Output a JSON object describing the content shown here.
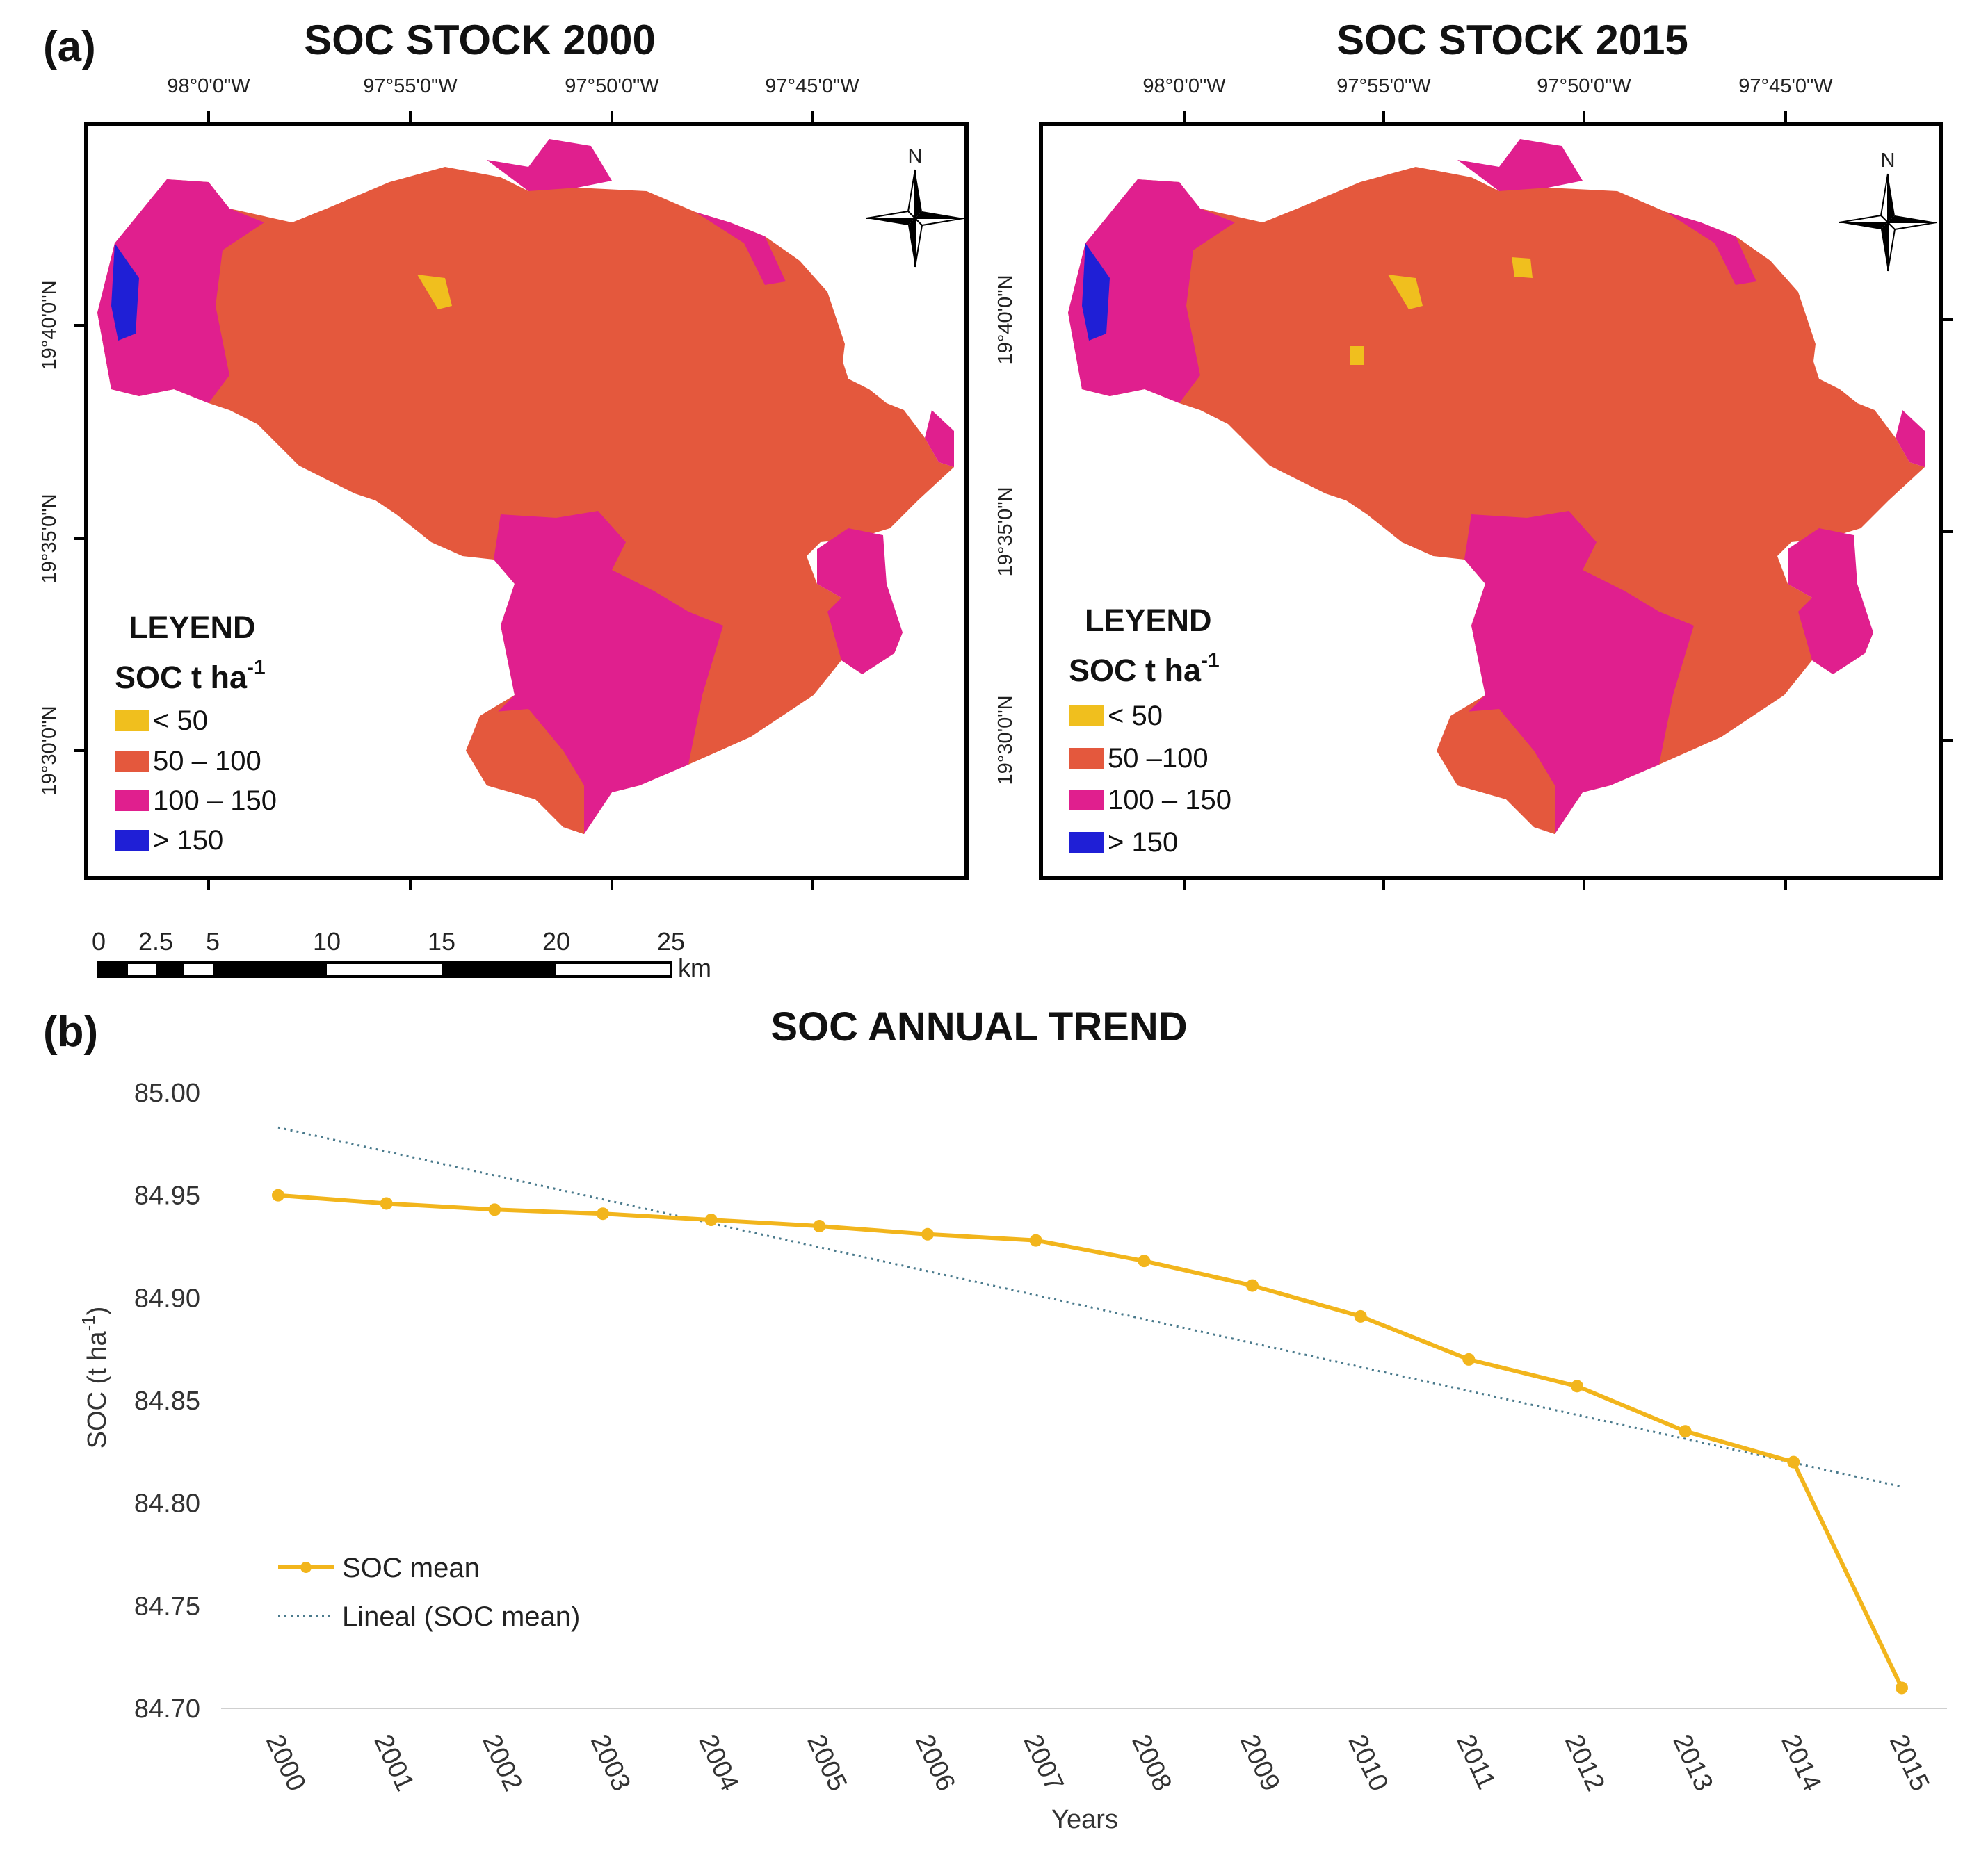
{
  "panel_a_label": "(a)",
  "panel_b_label": "(b)",
  "colors": {
    "class_lt50": "#f0bf1e",
    "class_50_100": "#e4583d",
    "class_100_150": "#e01f8e",
    "class_gt150": "#1f1fd6",
    "soc_line": "#f2b51c",
    "trend_line": "#4a7a8c"
  },
  "maps": [
    {
      "title": "SOC STOCK 2000",
      "lon_labels": [
        "98°0'0\"W",
        "97°55'0\"W",
        "97°50'0\"W",
        "97°45'0\"W"
      ],
      "lat_labels": [
        "19°40'0\"N",
        "19°35'0\"N",
        "19°30'0\"N"
      ],
      "north_label": "N",
      "legend": {
        "title": "LEYEND",
        "subtitle": "SOC t ha",
        "subtitle_sup": "-1",
        "items": [
          {
            "label": "< 50",
            "color_key": "class_lt50"
          },
          {
            "label": "50 – 100",
            "color_key": "class_50_100"
          },
          {
            "label": "100 – 150",
            "color_key": "class_100_150"
          },
          {
            "label": "> 150",
            "color_key": "class_gt150"
          }
        ]
      }
    },
    {
      "title": "SOC STOCK 2015",
      "lon_labels": [
        "98°0'0\"W",
        "97°55'0\"W",
        "97°50'0\"W",
        "97°45'0\"W"
      ],
      "lat_labels": [
        "19°40'0\"N",
        "19°35'0\"N",
        "19°30'0\"N"
      ],
      "north_label": "N",
      "legend": {
        "title": "LEYEND",
        "subtitle": "SOC t ha",
        "subtitle_sup": "-1",
        "items": [
          {
            "label": "< 50",
            "color_key": "class_lt50"
          },
          {
            "label": "50 –100",
            "color_key": "class_50_100"
          },
          {
            "label": "100 – 150",
            "color_key": "class_100_150"
          },
          {
            "label": "> 150",
            "color_key": "class_gt150"
          }
        ]
      }
    }
  ],
  "scale_bar": {
    "labels": [
      "0",
      "2.5",
      "5",
      "10",
      "15",
      "20",
      "25"
    ],
    "unit": "km"
  },
  "chart_data": {
    "type": "line",
    "title": "SOC ANNUAL TREND",
    "xlabel": "Years",
    "ylabel": "SOC (t ha",
    "ylabel_sup": "-1",
    "ylabel_end": ")",
    "categories": [
      "2000",
      "2001",
      "2002",
      "2003",
      "2004",
      "2005",
      "2006",
      "2007",
      "2008",
      "2009",
      "2010",
      "2011",
      "2012",
      "2013",
      "2014",
      "2015"
    ],
    "series": [
      {
        "name": "SOC mean",
        "values": [
          84.95,
          84.946,
          84.943,
          84.941,
          84.938,
          84.935,
          84.931,
          84.928,
          84.918,
          84.906,
          84.891,
          84.87,
          84.857,
          84.835,
          84.82,
          84.71
        ],
        "style": "solid-with-markers"
      }
    ],
    "trendline": {
      "name": "Lineal (SOC mean)",
      "start": 84.983,
      "end": 84.808,
      "style": "dotted"
    },
    "ylim": [
      84.7,
      85.0
    ],
    "yticks": [
      "85.00",
      "84.95",
      "84.90",
      "84.85",
      "84.80",
      "84.75",
      "84.70"
    ],
    "legend_position": "bottom-left"
  }
}
